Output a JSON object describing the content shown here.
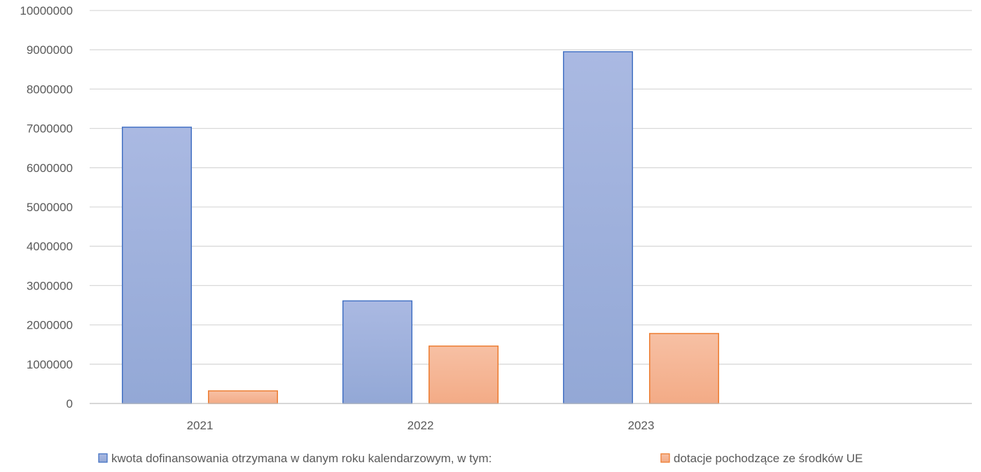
{
  "chart_data": {
    "type": "bar",
    "categories": [
      "2021",
      "2022",
      "2023"
    ],
    "extra_empty_category_slots": 1,
    "series": [
      {
        "name": "kwota dofinansowania otrzymana w danym roku kalendarzowym, w tym:",
        "values": [
          7030000,
          2610000,
          8950000
        ],
        "fill_top": "#aab9e2",
        "fill_bottom": "#93a8d6",
        "stroke": "#4472c4"
      },
      {
        "name": "dotacje pochodzące ze środków UE",
        "values": [
          320000,
          1460000,
          1780000
        ],
        "fill_top": "#f7c0a4",
        "fill_bottom": "#f3ab86",
        "stroke": "#ed7d31"
      }
    ],
    "ylim": [
      0,
      10000000
    ],
    "y_ticks": [
      "0",
      "1000000",
      "2000000",
      "3000000",
      "4000000",
      "5000000",
      "6000000",
      "7000000",
      "8000000",
      "9000000",
      "10000000"
    ],
    "title": "",
    "xlabel": "",
    "ylabel": "",
    "grid": true,
    "gridline_color": "#d9d9d9",
    "axis_line_color": "#bfbfbf",
    "text_color": "#595959",
    "legend_position": "bottom"
  }
}
